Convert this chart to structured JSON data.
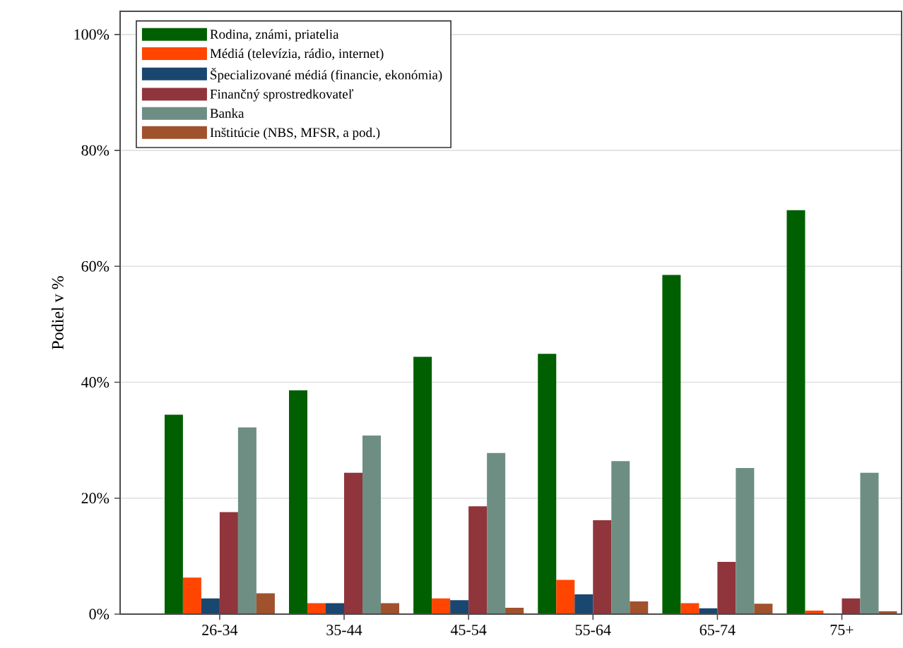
{
  "chart_data": {
    "type": "bar",
    "ylabel": "Podiel v %",
    "categories": [
      "26-34",
      "35-44",
      "45-54",
      "55-64",
      "65-74",
      "75+"
    ],
    "series": [
      {
        "name": "Rodina, známi, priatelia",
        "color": "#005f00",
        "values": [
          34.4,
          38.6,
          44.4,
          44.9,
          58.5,
          69.7
        ]
      },
      {
        "name": "Médiá (televízia, rádio, internet)",
        "color": "#ff4500",
        "values": [
          6.3,
          1.9,
          2.7,
          5.9,
          1.9,
          0.6
        ]
      },
      {
        "name": "Špecializované médiá (financie, ekonómia)",
        "color": "#1a476f",
        "values": [
          2.7,
          1.9,
          2.4,
          3.4,
          1.0,
          0
        ]
      },
      {
        "name": "Finančný sprostredkovateľ",
        "color": "#90353b",
        "values": [
          17.6,
          24.4,
          18.6,
          16.2,
          9.0,
          2.7
        ]
      },
      {
        "name": "Banka",
        "color": "#6e8e84",
        "values": [
          32.2,
          30.8,
          27.8,
          26.4,
          25.2,
          24.4
        ]
      },
      {
        "name": "Inštitúcie (NBS, MFSR, a pod.)",
        "color": "#a0522d",
        "values": [
          3.6,
          1.9,
          1.1,
          2.2,
          1.8,
          0.5
        ]
      }
    ],
    "ylim": [
      0,
      104
    ],
    "yticks": [
      {
        "value": 0,
        "label": "0%"
      },
      {
        "value": 20,
        "label": "20%"
      },
      {
        "value": 40,
        "label": "40%"
      },
      {
        "value": 60,
        "label": "60%"
      },
      {
        "value": 80,
        "label": "80%"
      },
      {
        "value": 100,
        "label": "100%"
      }
    ],
    "grid": "y",
    "legend": "top left"
  }
}
